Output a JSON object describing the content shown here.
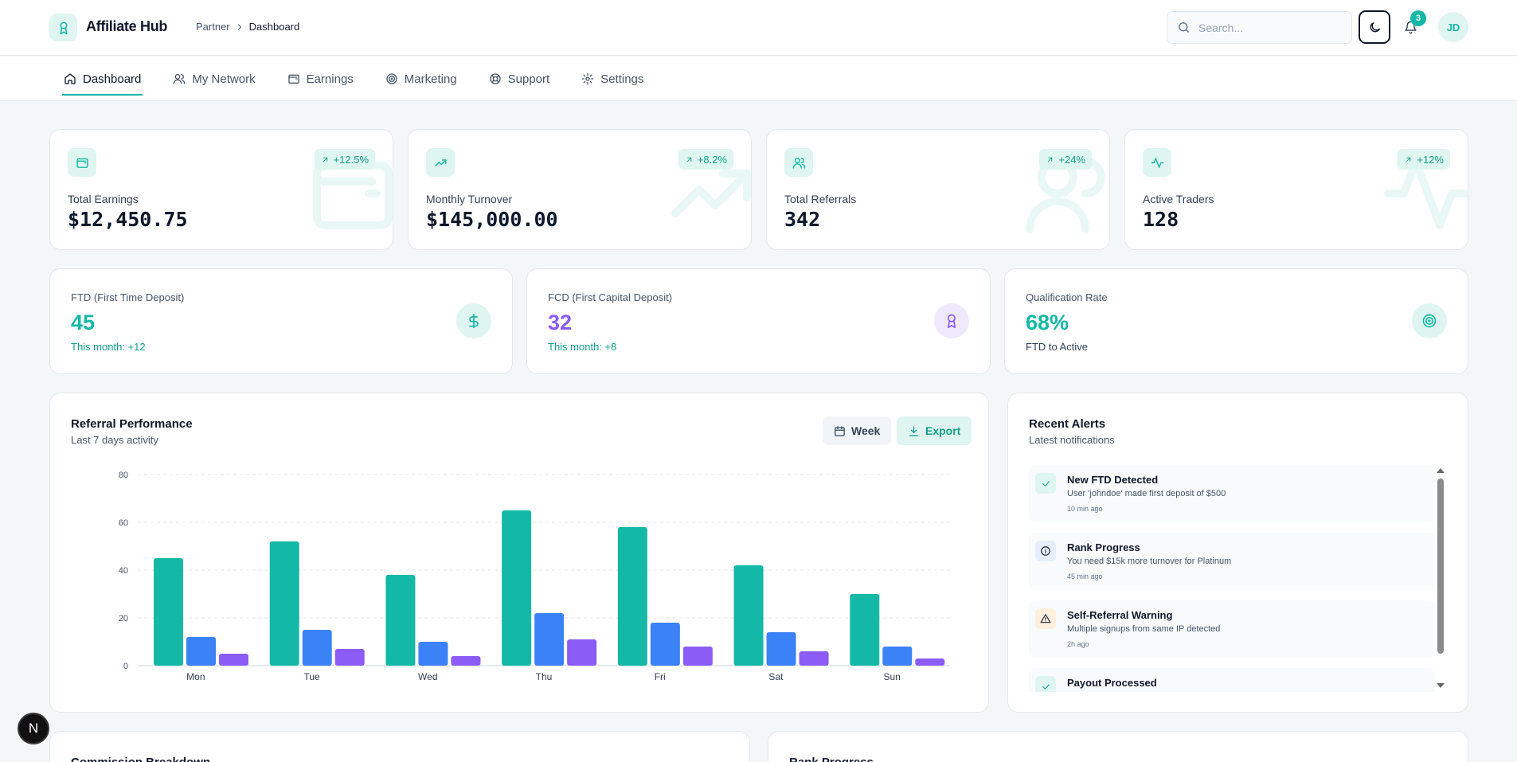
{
  "header": {
    "brand": "Affiliate Hub",
    "breadcrumb": [
      "Partner",
      "Dashboard"
    ],
    "search_placeholder": "Search...",
    "notifications_count": "3",
    "avatar_initials": "JD"
  },
  "nav": {
    "items": [
      {
        "label": "Dashboard",
        "icon": "home-icon",
        "active": true
      },
      {
        "label": "My Network",
        "icon": "users-icon"
      },
      {
        "label": "Earnings",
        "icon": "wallet-icon"
      },
      {
        "label": "Marketing",
        "icon": "target-icon"
      },
      {
        "label": "Support",
        "icon": "lifebuoy-icon"
      },
      {
        "label": "Settings",
        "icon": "gear-icon"
      }
    ]
  },
  "stats": [
    {
      "label": "Total Earnings",
      "value": "$12,450.75",
      "change": "+12.5%",
      "icon": "wallet-icon"
    },
    {
      "label": "Monthly Turnover",
      "value": "$145,000.00",
      "change": "+8.2%",
      "icon": "trending-up-icon"
    },
    {
      "label": "Total Referrals",
      "value": "342",
      "change": "+24%",
      "icon": "users-icon"
    },
    {
      "label": "Active Traders",
      "value": "128",
      "change": "+12%",
      "icon": "activity-icon"
    }
  ],
  "deposits": [
    {
      "label": "FTD (First Time Deposit)",
      "value": "45",
      "sub": "This month: +12",
      "icon": "dollar-icon"
    },
    {
      "label": "FCD (First Capital Deposit)",
      "value": "32",
      "sub": "This month: +8",
      "icon": "award-icon"
    },
    {
      "label": "Qualification Rate",
      "value": "68%",
      "sub": "FTD to Active",
      "icon": "target-icon"
    }
  ],
  "colors": {
    "teal": "#14b8a6",
    "blue": "#3b82f6",
    "purple": "#8b5cf6"
  },
  "performance": {
    "title": "Referral Performance",
    "subtitle": "Last 7 days activity",
    "week_label": "Week",
    "export_label": "Export"
  },
  "chart_data": {
    "type": "bar",
    "categories": [
      "Mon",
      "Tue",
      "Wed",
      "Thu",
      "Fri",
      "Sat",
      "Sun"
    ],
    "series": [
      {
        "values": [
          45,
          52,
          38,
          65,
          58,
          42,
          30
        ],
        "color": "#14b8a6"
      },
      {
        "values": [
          12,
          15,
          10,
          22,
          18,
          14,
          8
        ],
        "color": "#3b82f6"
      },
      {
        "values": [
          5,
          7,
          4,
          11,
          8,
          6,
          3
        ],
        "color": "#8b5cf6"
      }
    ],
    "ylim": [
      0,
      80
    ],
    "yticks": [
      0,
      20,
      40,
      60,
      80
    ],
    "grid": true
  },
  "alerts": {
    "title": "Recent Alerts",
    "subtitle": "Latest notifications",
    "items": [
      {
        "title": "New FTD Detected",
        "message": "User 'johndoe' made first deposit of $500",
        "time": "10 min ago",
        "kind": "success",
        "icon": "check-icon"
      },
      {
        "title": "Rank Progress",
        "message": "You need $15k more turnover for Platinum",
        "time": "45 min ago",
        "kind": "info",
        "icon": "info-icon"
      },
      {
        "title": "Self-Referral Warning",
        "message": "Multiple signups from same IP detected",
        "time": "2h ago",
        "kind": "warning",
        "icon": "warning-icon"
      },
      {
        "title": "Payout Processed",
        "message": "",
        "time": "",
        "kind": "success",
        "icon": "check-icon"
      }
    ]
  },
  "bottom": {
    "commission_title": "Commission Breakdown",
    "rank_title": "Rank Progress"
  },
  "dev_button_label": "N"
}
